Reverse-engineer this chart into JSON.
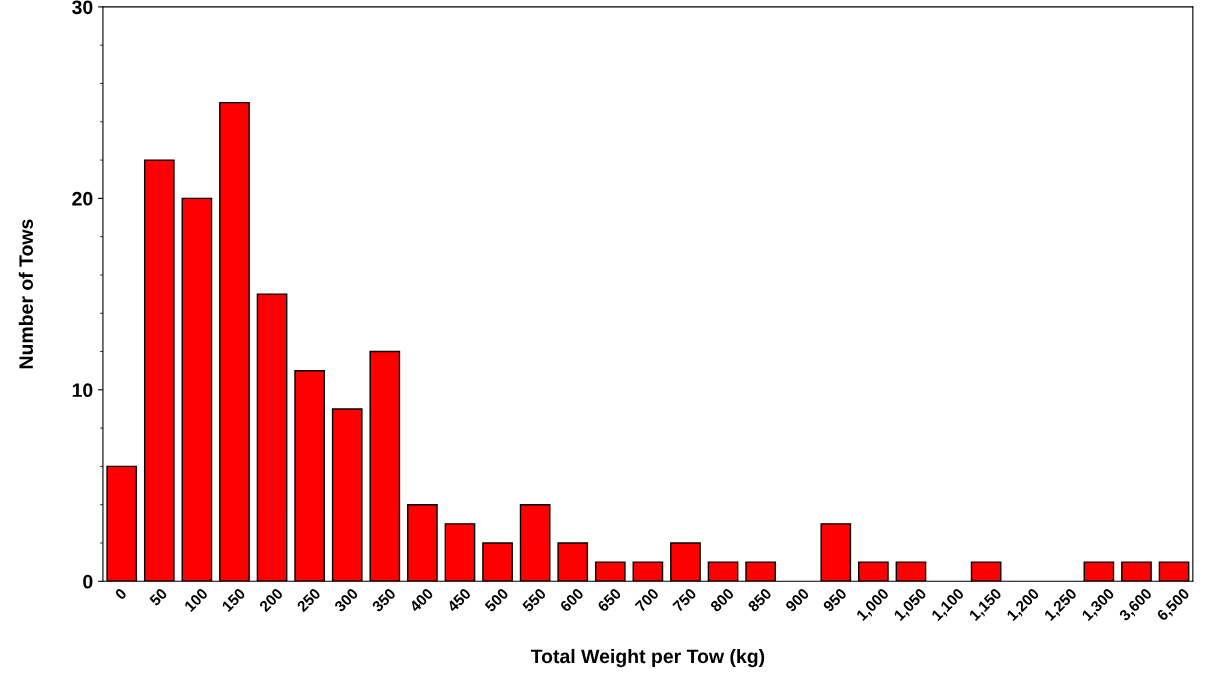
{
  "chart_data": {
    "type": "bar",
    "xlabel": "Total Weight per Tow (kg)",
    "ylabel": "Number of Tows",
    "categories": [
      "0",
      "50",
      "100",
      "150",
      "200",
      "250",
      "300",
      "350",
      "400",
      "450",
      "500",
      "550",
      "600",
      "650",
      "700",
      "750",
      "800",
      "850",
      "900",
      "950",
      "1,000",
      "1,050",
      "1,100",
      "1,150",
      "1,200",
      "1,250",
      "1,300",
      "3,600",
      "6,500"
    ],
    "values": [
      6,
      22,
      20,
      25,
      15,
      11,
      9,
      12,
      4,
      3,
      2,
      4,
      2,
      1,
      1,
      2,
      1,
      1,
      0,
      3,
      1,
      1,
      0,
      1,
      0,
      0,
      1,
      1,
      1
    ],
    "color": "#ff0000",
    "ylim": [
      0,
      30
    ],
    "yticks": [
      0,
      10,
      20,
      30
    ],
    "grid": false,
    "legend": false
  }
}
